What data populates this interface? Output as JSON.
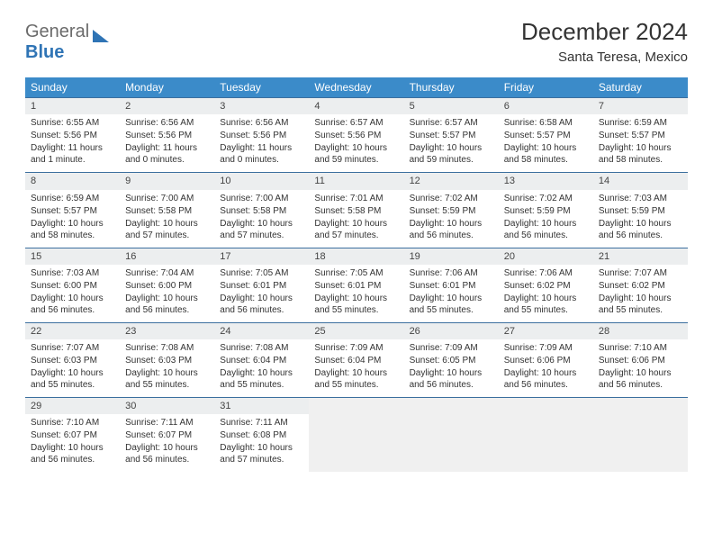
{
  "logo": {
    "word1": "General",
    "word2": "Blue"
  },
  "title": "December 2024",
  "subtitle": "Santa Teresa, Mexico",
  "accent": "#3b8bc9",
  "border": "#3b6f9e",
  "header_bg": "#eceeef",
  "day_headers": [
    "Sunday",
    "Monday",
    "Tuesday",
    "Wednesday",
    "Thursday",
    "Friday",
    "Saturday"
  ],
  "days": [
    {
      "n": "1",
      "sr": "6:55 AM",
      "ss": "5:56 PM",
      "dl": "11 hours and 1 minute."
    },
    {
      "n": "2",
      "sr": "6:56 AM",
      "ss": "5:56 PM",
      "dl": "11 hours and 0 minutes."
    },
    {
      "n": "3",
      "sr": "6:56 AM",
      "ss": "5:56 PM",
      "dl": "11 hours and 0 minutes."
    },
    {
      "n": "4",
      "sr": "6:57 AM",
      "ss": "5:56 PM",
      "dl": "10 hours and 59 minutes."
    },
    {
      "n": "5",
      "sr": "6:57 AM",
      "ss": "5:57 PM",
      "dl": "10 hours and 59 minutes."
    },
    {
      "n": "6",
      "sr": "6:58 AM",
      "ss": "5:57 PM",
      "dl": "10 hours and 58 minutes."
    },
    {
      "n": "7",
      "sr": "6:59 AM",
      "ss": "5:57 PM",
      "dl": "10 hours and 58 minutes."
    },
    {
      "n": "8",
      "sr": "6:59 AM",
      "ss": "5:57 PM",
      "dl": "10 hours and 58 minutes."
    },
    {
      "n": "9",
      "sr": "7:00 AM",
      "ss": "5:58 PM",
      "dl": "10 hours and 57 minutes."
    },
    {
      "n": "10",
      "sr": "7:00 AM",
      "ss": "5:58 PM",
      "dl": "10 hours and 57 minutes."
    },
    {
      "n": "11",
      "sr": "7:01 AM",
      "ss": "5:58 PM",
      "dl": "10 hours and 57 minutes."
    },
    {
      "n": "12",
      "sr": "7:02 AM",
      "ss": "5:59 PM",
      "dl": "10 hours and 56 minutes."
    },
    {
      "n": "13",
      "sr": "7:02 AM",
      "ss": "5:59 PM",
      "dl": "10 hours and 56 minutes."
    },
    {
      "n": "14",
      "sr": "7:03 AM",
      "ss": "5:59 PM",
      "dl": "10 hours and 56 minutes."
    },
    {
      "n": "15",
      "sr": "7:03 AM",
      "ss": "6:00 PM",
      "dl": "10 hours and 56 minutes."
    },
    {
      "n": "16",
      "sr": "7:04 AM",
      "ss": "6:00 PM",
      "dl": "10 hours and 56 minutes."
    },
    {
      "n": "17",
      "sr": "7:05 AM",
      "ss": "6:01 PM",
      "dl": "10 hours and 56 minutes."
    },
    {
      "n": "18",
      "sr": "7:05 AM",
      "ss": "6:01 PM",
      "dl": "10 hours and 55 minutes."
    },
    {
      "n": "19",
      "sr": "7:06 AM",
      "ss": "6:01 PM",
      "dl": "10 hours and 55 minutes."
    },
    {
      "n": "20",
      "sr": "7:06 AM",
      "ss": "6:02 PM",
      "dl": "10 hours and 55 minutes."
    },
    {
      "n": "21",
      "sr": "7:07 AM",
      "ss": "6:02 PM",
      "dl": "10 hours and 55 minutes."
    },
    {
      "n": "22",
      "sr": "7:07 AM",
      "ss": "6:03 PM",
      "dl": "10 hours and 55 minutes."
    },
    {
      "n": "23",
      "sr": "7:08 AM",
      "ss": "6:03 PM",
      "dl": "10 hours and 55 minutes."
    },
    {
      "n": "24",
      "sr": "7:08 AM",
      "ss": "6:04 PM",
      "dl": "10 hours and 55 minutes."
    },
    {
      "n": "25",
      "sr": "7:09 AM",
      "ss": "6:04 PM",
      "dl": "10 hours and 55 minutes."
    },
    {
      "n": "26",
      "sr": "7:09 AM",
      "ss": "6:05 PM",
      "dl": "10 hours and 56 minutes."
    },
    {
      "n": "27",
      "sr": "7:09 AM",
      "ss": "6:06 PM",
      "dl": "10 hours and 56 minutes."
    },
    {
      "n": "28",
      "sr": "7:10 AM",
      "ss": "6:06 PM",
      "dl": "10 hours and 56 minutes."
    },
    {
      "n": "29",
      "sr": "7:10 AM",
      "ss": "6:07 PM",
      "dl": "10 hours and 56 minutes."
    },
    {
      "n": "30",
      "sr": "7:11 AM",
      "ss": "6:07 PM",
      "dl": "10 hours and 56 minutes."
    },
    {
      "n": "31",
      "sr": "7:11 AM",
      "ss": "6:08 PM",
      "dl": "10 hours and 57 minutes."
    }
  ],
  "labels": {
    "sunrise": "Sunrise:",
    "sunset": "Sunset:",
    "daylight": "Daylight:"
  },
  "trailing_empty": 4
}
